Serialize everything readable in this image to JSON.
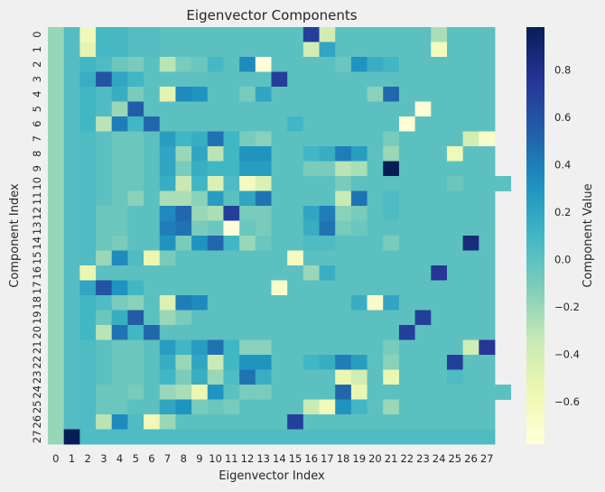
{
  "chart_data": {
    "type": "heatmap",
    "title": "Eigenvector Components",
    "xlabel": "Eigenvector Index",
    "ylabel": "Component Index",
    "colorbar_label": "Component Value",
    "colormap": "YlGnBu",
    "vmin": -0.78,
    "vmax": 0.98,
    "colorbar_ticks": [
      "0.8",
      "0.6",
      "0.4",
      "0.2",
      "0.0",
      "−0.2",
      "−0.4",
      "−0.6"
    ],
    "colorbar_tick_values": [
      0.8,
      0.6,
      0.4,
      0.2,
      0.0,
      -0.2,
      -0.4,
      -0.6
    ],
    "x_tick_labels": [
      "0",
      "1",
      "2",
      "3",
      "4",
      "5",
      "6",
      "7",
      "8",
      "9",
      "10",
      "11",
      "12",
      "13",
      "14",
      "15",
      "16",
      "17",
      "18",
      "19",
      "20",
      "21",
      "22",
      "23",
      "24",
      "25",
      "26",
      "27"
    ],
    "y_tick_labels": [
      "0",
      "1",
      "2",
      "3",
      "4",
      "5",
      "6",
      "7",
      "8",
      "9",
      "10",
      "11",
      "12",
      "13",
      "14",
      "15",
      "16",
      "17",
      "18",
      "19",
      "20",
      "21",
      "22",
      "23",
      "24",
      "25",
      "26",
      "27"
    ],
    "values": [
      [
        -0.19,
        0.03,
        -0.6,
        0.08,
        0.08,
        0.03,
        0.03,
        0,
        0,
        0,
        0,
        0,
        0,
        0,
        0,
        0,
        0.7,
        -0.4,
        0,
        0,
        0,
        0,
        0,
        0,
        -0.25,
        0,
        0,
        0
      ],
      [
        -0.19,
        0.03,
        -0.5,
        0.08,
        0.08,
        0.03,
        0.03,
        0,
        0,
        0,
        0,
        0,
        0,
        0,
        0,
        0,
        -0.4,
        0.2,
        0,
        0,
        0,
        0,
        0,
        0,
        -0.65,
        0,
        0,
        0
      ],
      [
        -0.19,
        0.03,
        0.1,
        0.05,
        -0.05,
        -0.1,
        0,
        -0.3,
        -0.1,
        -0.05,
        0.08,
        0,
        0.35,
        -0.78,
        0,
        0,
        0,
        0,
        -0.05,
        0.3,
        0.15,
        0.1,
        0,
        0,
        0,
        0,
        0,
        0
      ],
      [
        -0.19,
        0.03,
        0.15,
        0.6,
        0.2,
        0.1,
        0,
        0,
        0,
        0,
        0,
        0,
        0,
        0,
        0.7,
        0,
        0,
        0,
        0,
        0,
        0,
        0,
        0,
        0,
        0,
        0,
        0,
        0
      ],
      [
        -0.19,
        0.03,
        0.1,
        0.05,
        0.15,
        -0.1,
        0,
        -0.5,
        0.35,
        0.3,
        0,
        0,
        -0.1,
        0.2,
        0,
        0,
        0,
        0,
        0,
        0,
        -0.15,
        0.5,
        0,
        0,
        0,
        0,
        0,
        0
      ],
      [
        -0.19,
        0.03,
        0.1,
        0.05,
        -0.2,
        0.55,
        0,
        0,
        0,
        0,
        0,
        0,
        0,
        0,
        0,
        0,
        0,
        0,
        0,
        0,
        0,
        0,
        0,
        -0.75,
        0,
        0,
        0,
        0
      ],
      [
        -0.19,
        0.03,
        0.1,
        -0.3,
        0.4,
        0.1,
        0.5,
        0,
        0,
        0,
        0,
        0,
        0,
        0,
        0,
        0.1,
        0,
        0,
        0,
        0,
        0,
        0,
        -0.75,
        0,
        0,
        0,
        0,
        0
      ],
      [
        -0.19,
        0.03,
        0.05,
        0,
        -0.05,
        -0.05,
        0,
        0.25,
        0.1,
        0.15,
        0.45,
        0.1,
        -0.1,
        -0.15,
        0,
        0,
        0,
        0,
        0,
        0,
        0,
        -0.1,
        0,
        0,
        0,
        0,
        -0.4,
        -0.7
      ],
      [
        -0.19,
        0.03,
        0.05,
        0,
        -0.05,
        -0.05,
        0,
        0.2,
        -0.2,
        0.2,
        -0.3,
        0.1,
        0.3,
        0.3,
        0,
        0,
        0.1,
        0.15,
        0.4,
        0.25,
        0,
        -0.2,
        0,
        0,
        0,
        -0.6,
        0,
        0
      ],
      [
        -0.19,
        0.03,
        0.05,
        0,
        -0.05,
        -0.05,
        0,
        0.2,
        -0.1,
        0.15,
        0.1,
        0.1,
        0.25,
        0.25,
        0,
        0,
        -0.1,
        -0.1,
        -0.3,
        -0.25,
        0,
        0.98,
        0,
        0,
        0,
        0,
        0,
        0
      ],
      [
        -0.19,
        0.03,
        0.05,
        0,
        -0.05,
        -0.05,
        0,
        0.15,
        -0.35,
        0.1,
        -0.45,
        0.05,
        -0.65,
        -0.45,
        0,
        0,
        0,
        0,
        -0.1,
        0,
        0,
        0,
        0,
        0,
        0,
        -0.05,
        0,
        0,
        0
      ],
      [
        -0.19,
        0.03,
        0.05,
        0,
        -0.05,
        -0.15,
        0,
        -0.25,
        -0.25,
        -0.15,
        0.25,
        0,
        0.2,
        0.45,
        0,
        0,
        0,
        0,
        -0.35,
        0.45,
        0,
        0.05,
        0,
        0,
        0,
        0,
        0,
        0
      ],
      [
        -0.19,
        0.03,
        0.05,
        -0.05,
        -0.05,
        0,
        0,
        0.35,
        0.5,
        -0.2,
        -0.25,
        0.7,
        -0.1,
        -0.1,
        0,
        0,
        0.2,
        0.4,
        -0.15,
        -0.1,
        0,
        0.05,
        0,
        0,
        0,
        0,
        0,
        0
      ],
      [
        -0.19,
        0.03,
        0.05,
        -0.05,
        -0.05,
        0,
        0,
        0.4,
        0.45,
        -0.1,
        -0.05,
        -0.78,
        -0.05,
        -0.1,
        0,
        0,
        0.15,
        0.45,
        -0.1,
        -0.05,
        0,
        0,
        0,
        0,
        0,
        0,
        0,
        0
      ],
      [
        -0.19,
        0.03,
        0.05,
        -0.05,
        -0.1,
        0,
        0,
        0.3,
        -0.1,
        0.3,
        0.5,
        0.1,
        -0.2,
        -0.05,
        0,
        0,
        0.05,
        0.05,
        0,
        0,
        0,
        -0.1,
        0,
        0,
        0,
        0,
        0.85,
        0
      ],
      [
        -0.19,
        0.03,
        0.05,
        -0.2,
        0.35,
        0.05,
        -0.55,
        -0.1,
        0,
        0,
        0,
        0,
        0,
        0,
        0,
        -0.65,
        0,
        0,
        0,
        0,
        0,
        0,
        0,
        0,
        0,
        0,
        0,
        0
      ],
      [
        -0.19,
        0.03,
        -0.55,
        0,
        0,
        0,
        0,
        0,
        0,
        0,
        0,
        0,
        0,
        0,
        0,
        0,
        -0.2,
        0.15,
        0,
        0,
        0,
        0,
        0,
        0,
        0.75,
        0,
        0,
        0
      ],
      [
        -0.19,
        0.03,
        0.2,
        0.6,
        0.3,
        0.1,
        0,
        0,
        0,
        0,
        0,
        0,
        0,
        0,
        -0.7,
        0,
        0,
        0,
        0,
        0,
        0,
        0,
        0,
        0,
        0,
        0,
        0,
        0
      ],
      [
        -0.19,
        0.03,
        0.1,
        0.05,
        -0.1,
        -0.15,
        0,
        -0.45,
        0.4,
        0.35,
        0,
        0,
        0,
        0,
        0,
        0,
        0,
        0,
        0,
        0.15,
        -0.7,
        0.2,
        0,
        0,
        0,
        0,
        0,
        0
      ],
      [
        -0.19,
        0.03,
        0.1,
        -0.05,
        0.15,
        0.55,
        0,
        -0.2,
        -0.1,
        0,
        0,
        0,
        0,
        0,
        0,
        0,
        0,
        0,
        0,
        0,
        0,
        0,
        0,
        0.7,
        0,
        0,
        0,
        0
      ],
      [
        -0.19,
        0.03,
        0.1,
        -0.3,
        0.45,
        0.1,
        0.5,
        0,
        0,
        0,
        0,
        0,
        0,
        0,
        0,
        0,
        0,
        0,
        0,
        0,
        0,
        0,
        0.7,
        0,
        0,
        0,
        0,
        0
      ],
      [
        -0.19,
        0.03,
        0.05,
        0,
        -0.05,
        -0.05,
        0,
        0.25,
        0.1,
        0.25,
        0.45,
        0.1,
        -0.15,
        -0.15,
        0,
        0,
        0,
        0,
        0,
        0,
        0,
        -0.1,
        0,
        0,
        0,
        0,
        -0.4,
        0.75
      ],
      [
        -0.19,
        0.03,
        0.05,
        0,
        -0.05,
        -0.05,
        0,
        0.15,
        -0.2,
        0.2,
        -0.35,
        0.1,
        0.3,
        0.3,
        0,
        0,
        0.1,
        0.15,
        0.4,
        0.25,
        0,
        -0.15,
        0,
        0,
        0,
        0.7,
        0,
        0
      ],
      [
        -0.19,
        0.03,
        0.05,
        0,
        -0.05,
        -0.05,
        0,
        0.1,
        -0.1,
        0.15,
        -0.2,
        0.05,
        0.45,
        0.15,
        0,
        0,
        0,
        0,
        -0.55,
        -0.4,
        0,
        -0.55,
        0,
        0,
        0,
        0.05,
        0,
        0
      ],
      [
        -0.19,
        0.03,
        0.05,
        -0.05,
        -0.05,
        -0.1,
        0,
        -0.2,
        -0.25,
        -0.55,
        0.3,
        0,
        -0.1,
        -0.1,
        0,
        0,
        0,
        0,
        0.5,
        -0.55,
        0,
        0,
        0,
        0,
        0,
        0,
        0,
        0,
        0
      ],
      [
        -0.19,
        0.03,
        0.05,
        -0.05,
        -0.05,
        0,
        0,
        0.2,
        0.3,
        -0.1,
        -0.05,
        -0.1,
        0,
        0,
        0,
        0,
        -0.35,
        -0.6,
        0.3,
        0.1,
        0,
        -0.2,
        0,
        0,
        0,
        0,
        0,
        0
      ],
      [
        -0.19,
        0.03,
        0.05,
        -0.3,
        0.35,
        0.05,
        -0.6,
        -0.2,
        0,
        0,
        0,
        0,
        0,
        0,
        0,
        0.7,
        0,
        0,
        0,
        0,
        0,
        0,
        0,
        0,
        0,
        0,
        0,
        0
      ],
      [
        -0.19,
        0.98,
        0.05,
        0.05,
        0.05,
        0.05,
        0.05,
        0.05,
        0.05,
        0.05,
        0.05,
        0.05,
        0.05,
        0.05,
        0.05,
        0.05,
        0.05,
        0.05,
        0.05,
        0.05,
        0.05,
        0.05,
        0.05,
        0.05,
        0.05,
        0.05,
        0.05,
        0.05
      ]
    ]
  }
}
